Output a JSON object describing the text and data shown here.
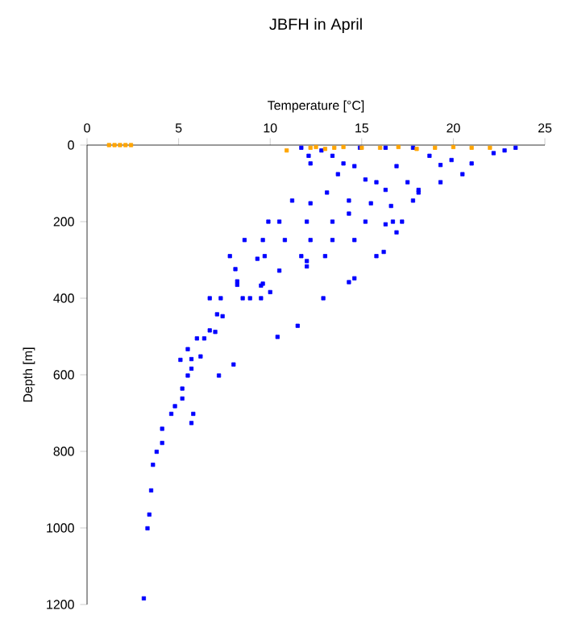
{
  "chart_data": {
    "type": "scatter",
    "title": "JBFH in April",
    "xlabel": "Temperature [°C]",
    "ylabel": "Depth [m]",
    "xlim": [
      0,
      25
    ],
    "ylim": [
      1200,
      0
    ],
    "xticks": [
      0,
      5,
      10,
      15,
      20,
      25
    ],
    "yticks": [
      0,
      200,
      400,
      600,
      800,
      1000,
      1200
    ],
    "marker": "square",
    "series": [
      {
        "color": "#0000ff",
        "x": [
          11.7,
          12.1,
          12.2,
          12.8,
          13.4,
          13.7,
          14.0,
          13.1,
          12.2,
          11.2,
          14.6,
          15.2,
          15.8,
          16.3,
          17.5,
          18.1,
          19.3,
          20.5,
          19.3,
          21.0,
          22.2,
          23.4,
          22.8,
          17.8,
          16.3,
          14.9,
          18.7,
          19.9,
          16.9,
          15.5,
          14.3,
          16.6,
          17.8,
          18.1,
          16.7,
          15.2,
          16.3,
          17.2,
          13.4,
          12.0,
          10.5,
          9.9,
          14.3,
          16.9,
          8.6,
          9.6,
          10.8,
          12.2,
          13.4,
          14.6,
          7.8,
          9.3,
          9.7,
          11.7,
          12.0,
          13.0,
          15.8,
          16.2,
          8.1,
          10.5,
          12.0,
          8.2,
          9.6,
          14.6,
          6.7,
          7.3,
          8.2,
          8.5,
          8.9,
          9.5,
          9.5,
          10.0,
          12.9,
          14.3,
          11.5,
          10.4,
          7.1,
          7.4,
          6.0,
          6.4,
          6.7,
          7.0,
          5.5,
          5.1,
          5.7,
          6.2,
          5.5,
          7.2,
          8.0,
          5.7,
          5.2,
          5.2,
          4.8,
          4.6,
          5.8,
          5.7,
          4.1,
          4.1,
          3.8,
          3.6,
          3.5,
          3.4,
          3.3,
          3.1
        ],
        "values": [
          7,
          28,
          48,
          14,
          28,
          76,
          48,
          124,
          152,
          145,
          55,
          90,
          97,
          117,
          97,
          117,
          97,
          76,
          52,
          48,
          21,
          7,
          14,
          7,
          7,
          7,
          28,
          39,
          55,
          152,
          145,
          159,
          145,
          124,
          200,
          200,
          207,
          200,
          200,
          200,
          200,
          200,
          179,
          228,
          248,
          248,
          248,
          248,
          248,
          248,
          290,
          297,
          290,
          290,
          303,
          290,
          290,
          279,
          324,
          328,
          317,
          356,
          362,
          348,
          400,
          400,
          365,
          400,
          400,
          400,
          367,
          384,
          400,
          358,
          472,
          501,
          442,
          447,
          505,
          505,
          484,
          488,
          533,
          561,
          559,
          552,
          602,
          602,
          573,
          584,
          636,
          662,
          682,
          702,
          702,
          726,
          741,
          778,
          801,
          835,
          902,
          965,
          1001,
          1184
        ]
      },
      {
        "color": "#ffa500",
        "x": [
          1.2,
          1.5,
          1.8,
          2.1,
          2.4,
          10.9,
          12.2,
          12.5,
          13.0,
          13.5,
          14.0,
          15.0,
          16.0,
          17.0,
          18.0,
          19.0,
          20.0,
          21.0,
          22.0
        ],
        "values": [
          0,
          0,
          0,
          0,
          0,
          14,
          7,
          5,
          10,
          7,
          5,
          7,
          7,
          5,
          10,
          7,
          5,
          7,
          7
        ]
      }
    ]
  }
}
